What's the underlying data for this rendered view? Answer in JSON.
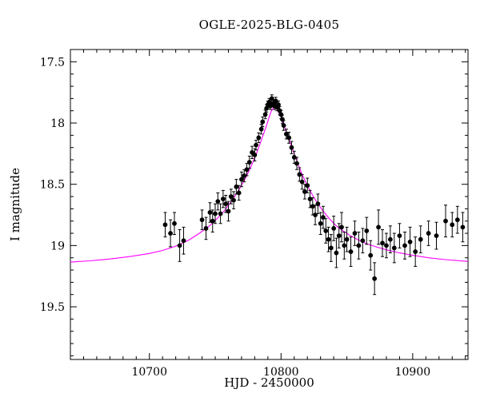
{
  "figure": {
    "background": "#ffffff",
    "frame_color": "#000000"
  },
  "chart_data": {
    "type": "scatter",
    "title": "OGLE-2025-BLG-0405",
    "xlabel": "HJD - 2450000",
    "ylabel": "I magnitude",
    "xlim": [
      10640,
      10942
    ],
    "ylim": [
      17.4,
      19.93
    ],
    "y_inverted": true,
    "grid": false,
    "x_major_ticks": [
      10700,
      10800,
      10900
    ],
    "x_tick_labels": [
      "10700",
      "10800",
      "10900"
    ],
    "x_minor_step": 10,
    "y_major_ticks": [
      17.5,
      18,
      18.5,
      19,
      19.5
    ],
    "y_tick_labels": [
      "17.5",
      "18",
      "18.5",
      "19",
      "19.5"
    ],
    "y_minor_step": 0.1,
    "series": [
      {
        "name": "model",
        "type": "line",
        "color": "#ff00ff",
        "points": [
          [
            10640,
            19.135
          ],
          [
            10655,
            19.125
          ],
          [
            10670,
            19.11
          ],
          [
            10685,
            19.09
          ],
          [
            10700,
            19.065
          ],
          [
            10710,
            19.04
          ],
          [
            10720,
            19.005
          ],
          [
            10730,
            18.955
          ],
          [
            10738,
            18.9
          ],
          [
            10745,
            18.845
          ],
          [
            10751,
            18.785
          ],
          [
            10757,
            18.715
          ],
          [
            10763,
            18.63
          ],
          [
            10768,
            18.545
          ],
          [
            10773,
            18.45
          ],
          [
            10777,
            18.36
          ],
          [
            10781,
            18.26
          ],
          [
            10784,
            18.17
          ],
          [
            10787,
            18.08
          ],
          [
            10789,
            18.02
          ],
          [
            10791,
            17.95
          ],
          [
            10792,
            17.92
          ],
          [
            10793,
            17.895
          ],
          [
            10794,
            17.88
          ],
          [
            10795,
            17.875
          ],
          [
            10796,
            17.88
          ],
          [
            10797,
            17.89
          ],
          [
            10799,
            17.93
          ],
          [
            10801,
            17.98
          ],
          [
            10803,
            18.04
          ],
          [
            10806,
            18.13
          ],
          [
            10809,
            18.22
          ],
          [
            10812,
            18.31
          ],
          [
            10816,
            18.42
          ],
          [
            10820,
            18.51
          ],
          [
            10824,
            18.59
          ],
          [
            10828,
            18.66
          ],
          [
            10832,
            18.72
          ],
          [
            10837,
            18.785
          ],
          [
            10842,
            18.84
          ],
          [
            10847,
            18.88
          ],
          [
            10852,
            18.915
          ],
          [
            10858,
            18.95
          ],
          [
            10865,
            18.985
          ],
          [
            10872,
            19.01
          ],
          [
            10880,
            19.035
          ],
          [
            10890,
            19.06
          ],
          [
            10900,
            19.08
          ],
          [
            10912,
            19.1
          ],
          [
            10925,
            19.115
          ],
          [
            10942,
            19.13
          ]
        ]
      },
      {
        "name": "data",
        "type": "scatter-errorbar",
        "color": "#000000",
        "points": [
          [
            10712,
            18.83,
            0.1
          ],
          [
            10716,
            18.9,
            0.11
          ],
          [
            10719,
            18.82,
            0.09
          ],
          [
            10723,
            19.0,
            0.13
          ],
          [
            10726,
            18.96,
            0.11
          ],
          [
            10740,
            18.79,
            0.08
          ],
          [
            10743,
            18.86,
            0.09
          ],
          [
            10746,
            18.73,
            0.08
          ],
          [
            10748,
            18.8,
            0.09
          ],
          [
            10750,
            18.74,
            0.08
          ],
          [
            10752,
            18.64,
            0.07
          ],
          [
            10754,
            18.74,
            0.08
          ],
          [
            10756,
            18.62,
            0.07
          ],
          [
            10758,
            18.66,
            0.07
          ],
          [
            10760,
            18.72,
            0.08
          ],
          [
            10762,
            18.6,
            0.06
          ],
          [
            10764,
            18.63,
            0.07
          ],
          [
            10766,
            18.52,
            0.06
          ],
          [
            10768,
            18.57,
            0.06
          ],
          [
            10770,
            18.46,
            0.06
          ],
          [
            10772,
            18.43,
            0.05
          ],
          [
            10774,
            18.38,
            0.05
          ],
          [
            10776,
            18.32,
            0.05
          ],
          [
            10778,
            18.24,
            0.05
          ],
          [
            10780,
            18.26,
            0.05
          ],
          [
            10781,
            18.18,
            0.04
          ],
          [
            10783,
            18.12,
            0.04
          ],
          [
            10785,
            18.05,
            0.04
          ],
          [
            10786,
            17.99,
            0.04
          ],
          [
            10788,
            17.93,
            0.035
          ],
          [
            10789,
            17.88,
            0.03
          ],
          [
            10790,
            17.85,
            0.03
          ],
          [
            10791,
            17.83,
            0.03
          ],
          [
            10792,
            17.86,
            0.03
          ],
          [
            10793,
            17.8,
            0.03
          ],
          [
            10794,
            17.84,
            0.03
          ],
          [
            10795,
            17.86,
            0.03
          ],
          [
            10796,
            17.82,
            0.03
          ],
          [
            10797,
            17.87,
            0.03
          ],
          [
            10798,
            17.85,
            0.03
          ],
          [
            10799,
            17.9,
            0.035
          ],
          [
            10800,
            17.93,
            0.035
          ],
          [
            10801,
            17.97,
            0.035
          ],
          [
            10802,
            18.02,
            0.04
          ],
          [
            10804,
            18.09,
            0.04
          ],
          [
            10806,
            18.12,
            0.045
          ],
          [
            10808,
            18.2,
            0.05
          ],
          [
            10810,
            18.28,
            0.05
          ],
          [
            10812,
            18.33,
            0.05
          ],
          [
            10814,
            18.42,
            0.055
          ],
          [
            10816,
            18.48,
            0.06
          ],
          [
            10818,
            18.56,
            0.06
          ],
          [
            10820,
            18.51,
            0.06
          ],
          [
            10822,
            18.62,
            0.07
          ],
          [
            10824,
            18.68,
            0.07
          ],
          [
            10826,
            18.75,
            0.08
          ],
          [
            10828,
            18.66,
            0.08
          ],
          [
            10830,
            18.82,
            0.09
          ],
          [
            10832,
            18.77,
            0.09
          ],
          [
            10834,
            18.88,
            0.1
          ],
          [
            10836,
            18.95,
            0.1
          ],
          [
            10838,
            19.02,
            0.11
          ],
          [
            10840,
            18.86,
            0.1
          ],
          [
            10842,
            19.06,
            0.12
          ],
          [
            10844,
            18.92,
            0.1
          ],
          [
            10846,
            18.85,
            0.12
          ],
          [
            10848,
            19.0,
            0.11
          ],
          [
            10850,
            18.95,
            0.1
          ],
          [
            10853,
            19.05,
            0.12
          ],
          [
            10856,
            18.9,
            0.1
          ],
          [
            10859,
            19.0,
            0.11
          ],
          [
            10862,
            18.96,
            0.1
          ],
          [
            10865,
            18.88,
            0.11
          ],
          [
            10868,
            19.08,
            0.12
          ],
          [
            10871,
            19.27,
            0.13
          ],
          [
            10874,
            18.85,
            0.14
          ],
          [
            10877,
            18.98,
            0.11
          ],
          [
            10880,
            19.0,
            0.1
          ],
          [
            10883,
            18.95,
            0.11
          ],
          [
            10886,
            19.02,
            0.12
          ],
          [
            10890,
            18.92,
            0.1
          ],
          [
            10894,
            19.0,
            0.11
          ],
          [
            10898,
            18.97,
            0.12
          ],
          [
            10902,
            19.05,
            0.12
          ],
          [
            10906,
            18.95,
            0.11
          ],
          [
            10912,
            18.9,
            0.1
          ],
          [
            10918,
            18.92,
            0.11
          ],
          [
            10925,
            18.8,
            0.13
          ],
          [
            10930,
            18.83,
            0.1
          ],
          [
            10934,
            18.79,
            0.11
          ],
          [
            10938,
            18.85,
            0.12
          ]
        ]
      }
    ]
  }
}
